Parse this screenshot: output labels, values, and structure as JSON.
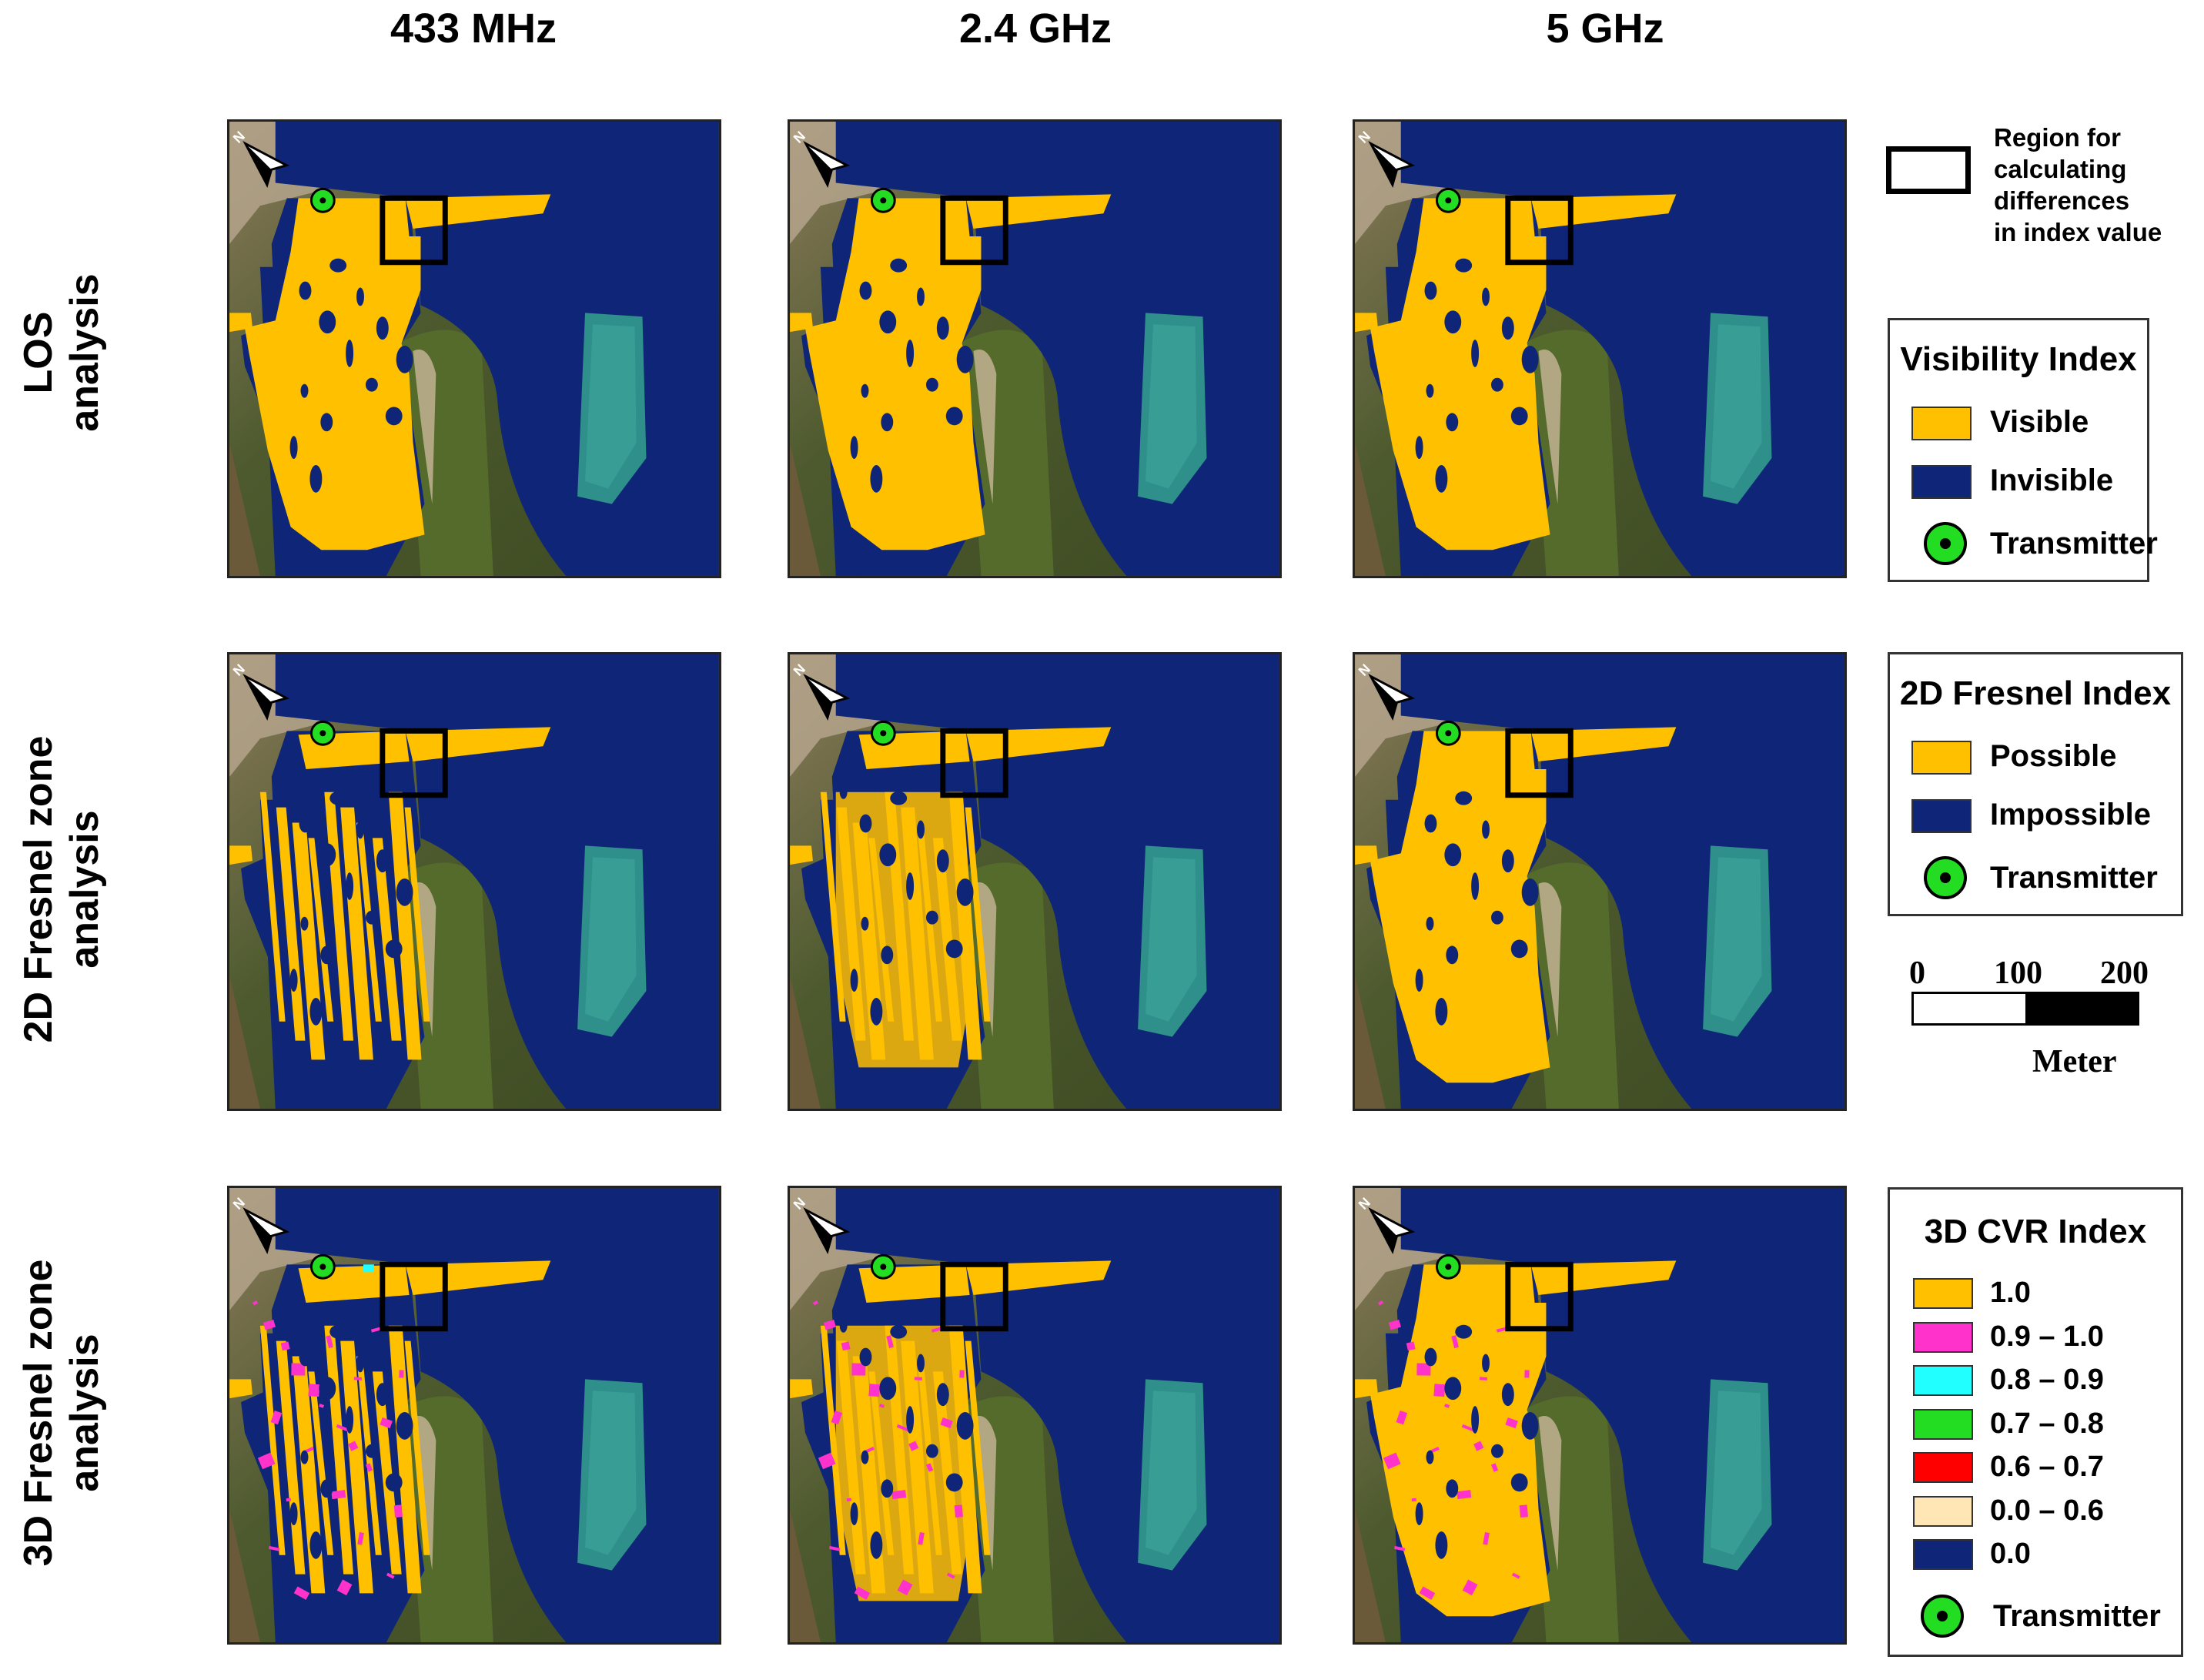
{
  "columns": [
    "433 MHz",
    "2.4 GHz",
    "5 GHz"
  ],
  "rows": [
    {
      "line1": "LOS",
      "line2": "analysis"
    },
    {
      "line1": "2D Fresnel zone",
      "line2": "analysis"
    },
    {
      "line1": "3D Fresnel zone",
      "line2": "analysis"
    }
  ],
  "region_legend": {
    "text": [
      "Region for",
      "calculating",
      "differences",
      "in index value"
    ]
  },
  "visibility_legend": {
    "title": "Visibility Index",
    "items": [
      {
        "label": "Visible",
        "color": "#ffc000"
      },
      {
        "label": "Invisible",
        "color": "#0f2577"
      }
    ],
    "transmitter": "Transmitter"
  },
  "fresnel2d_legend": {
    "title": "2D Fresnel Index",
    "items": [
      {
        "label": "Possible",
        "color": "#ffc000"
      },
      {
        "label": "Impossible",
        "color": "#0f2577"
      }
    ],
    "transmitter": "Transmitter"
  },
  "scale_bar": {
    "ticks": [
      "0",
      "100",
      "200"
    ],
    "unit": "Meter"
  },
  "cvr_legend": {
    "title": "3D CVR Index",
    "items": [
      {
        "label": "1.0",
        "color": "#ffc000"
      },
      {
        "label": "0.9 – 1.0",
        "color": "#ff33cc"
      },
      {
        "label": "0.8 – 0.9",
        "color": "#22ffff"
      },
      {
        "label": "0.7 – 0.8",
        "color": "#22dd22"
      },
      {
        "label": "0.6 – 0.7",
        "color": "#ff0000"
      },
      {
        "label": "0.0 – 0.6",
        "color": "#ffe6b4"
      },
      {
        "label": "0.0",
        "color": "#0f2577"
      }
    ],
    "transmitter": "Transmitter"
  },
  "colors": {
    "visible": "#ffc000",
    "invisible": "#0f2577",
    "cvr_high": "#ff33cc",
    "cvr_mid": "#22ffff",
    "transmitter": "#22dd22"
  },
  "map_icons": [
    "north-arrow-icon",
    "transmitter-icon",
    "region-box"
  ]
}
